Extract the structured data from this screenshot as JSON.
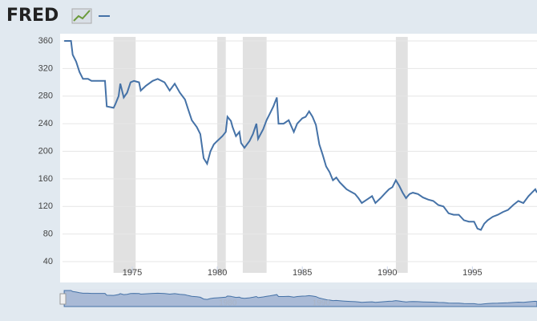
{
  "header": {
    "logo": "FRED"
  },
  "chart_data": {
    "type": "line",
    "series": [
      {
        "color": "#4572a7",
        "x": [
          1971.0,
          1971.4,
          1971.5,
          1971.7,
          1971.9,
          1972.1,
          1972.4,
          1972.6,
          1973.0,
          1973.4,
          1973.5,
          1973.9,
          1974.0,
          1974.2,
          1974.3,
          1974.5,
          1974.7,
          1974.9,
          1975.1,
          1975.4,
          1975.5,
          1975.8,
          1976.2,
          1976.5,
          1976.9,
          1977.2,
          1977.5,
          1977.8,
          1978.1,
          1978.3,
          1978.5,
          1978.8,
          1979.0,
          1979.2,
          1979.4,
          1979.6,
          1979.8,
          1980.0,
          1980.3,
          1980.5,
          1980.6,
          1980.8,
          1980.9,
          1981.1,
          1981.3,
          1981.4,
          1981.6,
          1981.9,
          1982.1,
          1982.3,
          1982.4,
          1982.7,
          1982.9,
          1983.1,
          1983.3,
          1983.5,
          1983.6,
          1983.9,
          1984.2,
          1984.5,
          1984.7,
          1985.0,
          1985.2,
          1985.4,
          1985.6,
          1985.8,
          1986.0,
          1986.2,
          1986.4,
          1986.6,
          1986.8,
          1987.0,
          1987.2,
          1987.4,
          1987.6,
          1987.8,
          1988.1,
          1988.3,
          1988.5,
          1988.8,
          1989.1,
          1989.3,
          1989.6,
          1989.9,
          1990.1,
          1990.3,
          1990.5,
          1990.7,
          1990.9,
          1991.1,
          1991.3,
          1991.5,
          1991.8,
          1992.1,
          1992.4,
          1992.7,
          1993.0,
          1993.3,
          1993.6,
          1993.9,
          1994.2,
          1994.5,
          1994.8,
          1995.1,
          1995.3,
          1995.5,
          1995.7,
          1995.9,
          1996.2,
          1996.5,
          1996.8,
          1997.1,
          1997.4,
          1997.7,
          1998.0,
          1998.3,
          1998.5,
          1998.7,
          1998.8
        ],
        "values": [
          360,
          360,
          340,
          330,
          315,
          305,
          305,
          302,
          302,
          302,
          265,
          263,
          268,
          280,
          298,
          278,
          285,
          300,
          302,
          300,
          288,
          295,
          302,
          305,
          300,
          288,
          298,
          285,
          275,
          260,
          245,
          235,
          225,
          190,
          182,
          200,
          210,
          215,
          222,
          228,
          250,
          244,
          235,
          222,
          228,
          212,
          205,
          215,
          225,
          240,
          218,
          232,
          245,
          255,
          265,
          278,
          240,
          240,
          245,
          228,
          240,
          248,
          250,
          258,
          250,
          238,
          210,
          195,
          178,
          170,
          158,
          162,
          155,
          150,
          145,
          142,
          138,
          132,
          125,
          130,
          135,
          125,
          132,
          140,
          145,
          148,
          158,
          150,
          140,
          132,
          138,
          140,
          138,
          133,
          130,
          128,
          122,
          120,
          110,
          108,
          108,
          100,
          98,
          98,
          88,
          86,
          95,
          100,
          105,
          108,
          112,
          115,
          122,
          128,
          125,
          135,
          140,
          145,
          140
        ]
      }
    ],
    "recessions": [
      [
        1973.9,
        1975.2
      ],
      [
        1980.0,
        1980.5
      ],
      [
        1981.5,
        1982.9
      ],
      [
        1990.5,
        1991.2
      ]
    ],
    "recession_color": "#e1e1e1",
    "xlim": [
      1970.9,
      1998.8
    ],
    "xticks": [
      1975,
      1980,
      1985,
      1990,
      1995
    ],
    "ylim": [
      40,
      360
    ],
    "yticks": [
      40,
      80,
      120,
      160,
      200,
      240,
      280,
      320,
      360
    ],
    "grid": true
  }
}
